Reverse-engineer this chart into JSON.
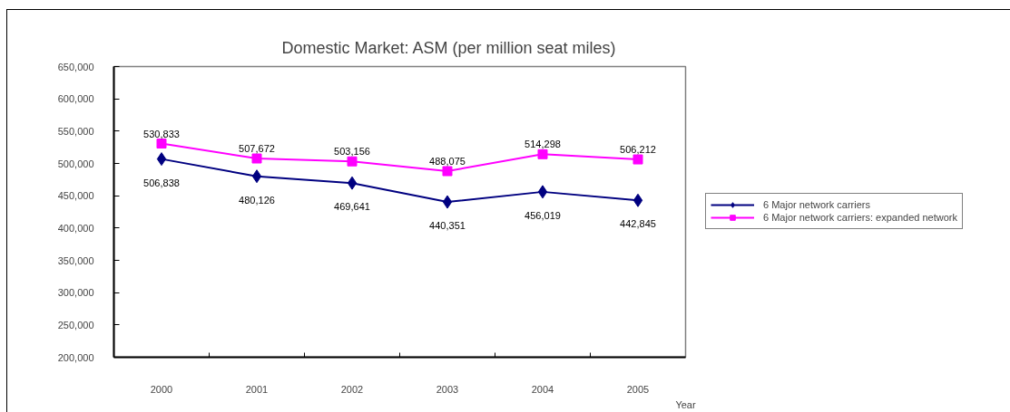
{
  "chart_data": {
    "type": "line",
    "title": "Domestic Market: ASM (per million seat miles)",
    "xlabel": "Year",
    "categories": [
      "2000",
      "2001",
      "2002",
      "2003",
      "2004",
      "2005"
    ],
    "series": [
      {
        "name": "6 Major network carriers",
        "color": "#000080",
        "marker": "diamond",
        "values": [
          506838,
          480126,
          469641,
          440351,
          456019,
          442845
        ],
        "value_labels": [
          "506,838",
          "480,126",
          "469,641",
          "440,351",
          "456,019",
          "442,845"
        ]
      },
      {
        "name": "6 Major network carriers: expanded network",
        "color": "#ff00ff",
        "marker": "square",
        "values": [
          530833,
          507672,
          503156,
          488075,
          514298,
          506212
        ],
        "value_labels": [
          "530,833",
          "507,672",
          "503,156",
          "488,075",
          "514,298",
          "506,212"
        ]
      }
    ],
    "ylim": [
      200000,
      650000
    ],
    "yticks": [
      {
        "value": 200000,
        "label": "200,000"
      },
      {
        "value": 250000,
        "label": "250,000"
      },
      {
        "value": 300000,
        "label": "300,000"
      },
      {
        "value": 350000,
        "label": "350,000"
      },
      {
        "value": 400000,
        "label": "400,000"
      },
      {
        "value": 450000,
        "label": "450,000"
      },
      {
        "value": 500000,
        "label": "500,000"
      },
      {
        "value": 550000,
        "label": "550,000"
      },
      {
        "value": 600000,
        "label": "600,000"
      },
      {
        "value": 650000,
        "label": "650,000"
      }
    ],
    "grid": false,
    "legend": "right",
    "line_style": "solid"
  }
}
